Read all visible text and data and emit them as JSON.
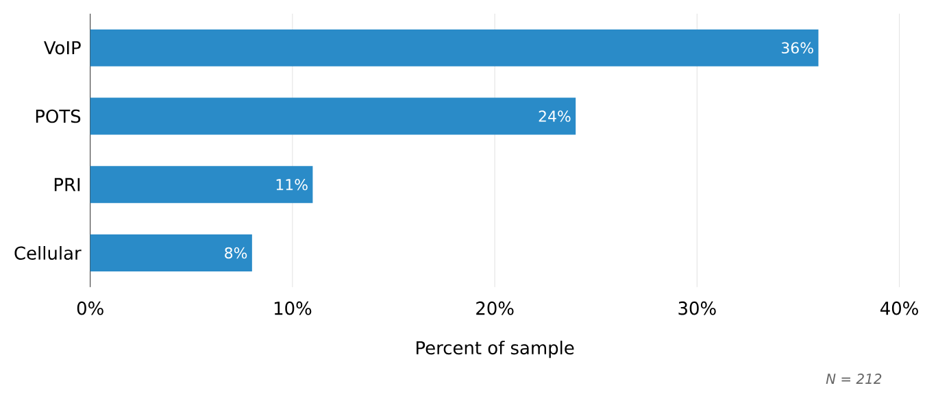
{
  "chart_data": {
    "type": "bar",
    "orientation": "horizontal",
    "categories": [
      "VoIP",
      "POTS",
      "PRI",
      "Cellular"
    ],
    "values": [
      36,
      24,
      11,
      8
    ],
    "color": "#2a8bc8",
    "value_labels": [
      "36%",
      "24%",
      "11%",
      "8%"
    ],
    "xlim": [
      0,
      40
    ],
    "xticks": [
      {
        "value": 0,
        "label": "0%"
      },
      {
        "value": 10,
        "label": "10%"
      },
      {
        "value": 20,
        "label": "20%"
      },
      {
        "value": 30,
        "label": "30%"
      },
      {
        "value": 40,
        "label": "40%"
      }
    ],
    "xlabel": "Percent of sample",
    "grid": "x",
    "annotations": [
      "N = 212"
    ]
  }
}
